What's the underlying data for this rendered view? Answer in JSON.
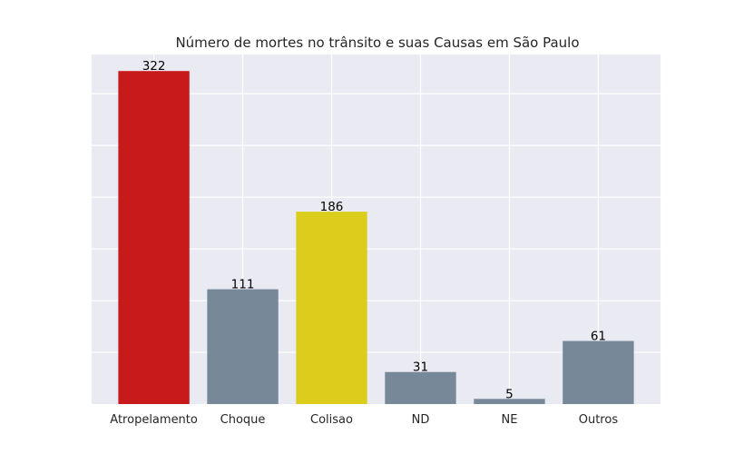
{
  "chart_data": {
    "type": "bar",
    "title": "Número de mortes no trânsito e suas Causas em São Paulo",
    "xlabel": "",
    "ylabel": "",
    "categories": [
      "Atropelamento",
      "Choque",
      "Colisao",
      "ND",
      "NE",
      "Outros"
    ],
    "values": [
      322,
      111,
      186,
      31,
      5,
      61
    ],
    "data_labels": [
      "322",
      "111",
      "186",
      "31",
      "5",
      "61"
    ],
    "bar_colors": [
      "#c8191b",
      "#778899",
      "#dccd1c",
      "#778899",
      "#778899",
      "#778899"
    ],
    "ylim": [
      0,
      338
    ],
    "y_ticks_visible": false,
    "grid": true,
    "background": "#eaeaf2",
    "grid_color": "#ffffff",
    "legend": "none"
  }
}
